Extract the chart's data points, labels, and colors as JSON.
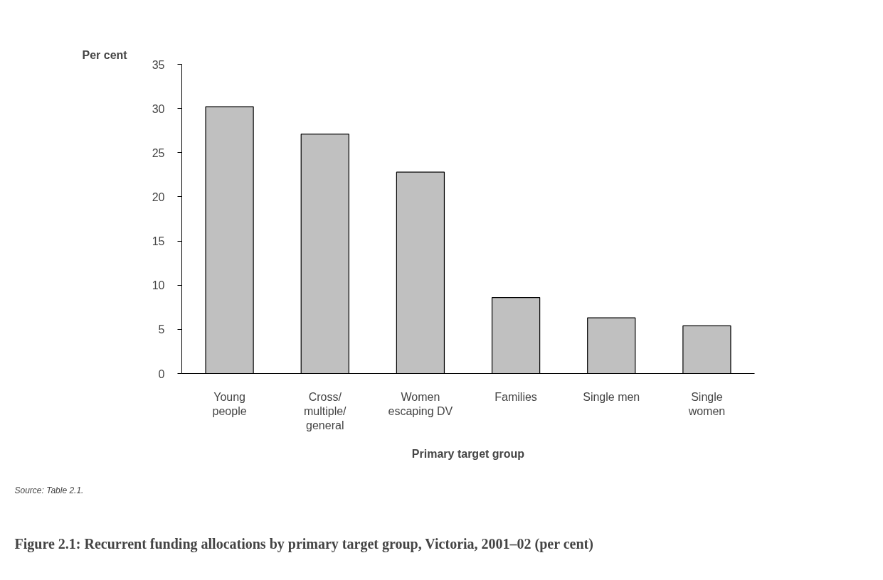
{
  "chart_data": {
    "type": "bar",
    "title": "Figure 2.1: Recurrent funding allocations by primary target group, Victoria, 2001–02 (per cent)",
    "ylabel": "Per cent",
    "xlabel": "Primary target group",
    "categories": [
      "Young\npeople",
      "Cross/\nmultiple/\ngeneral",
      "Women\nescaping DV",
      "Families",
      "Single men",
      "Single\nwomen"
    ],
    "values": [
      30.2,
      27.1,
      22.8,
      8.6,
      6.3,
      5.4
    ],
    "color": "#c0c0c0",
    "ylim": [
      0,
      35
    ],
    "yticks": [
      0,
      5,
      10,
      15,
      20,
      25,
      30,
      35
    ],
    "grid": false,
    "annotations": [
      "Source: Table 2.1."
    ]
  }
}
